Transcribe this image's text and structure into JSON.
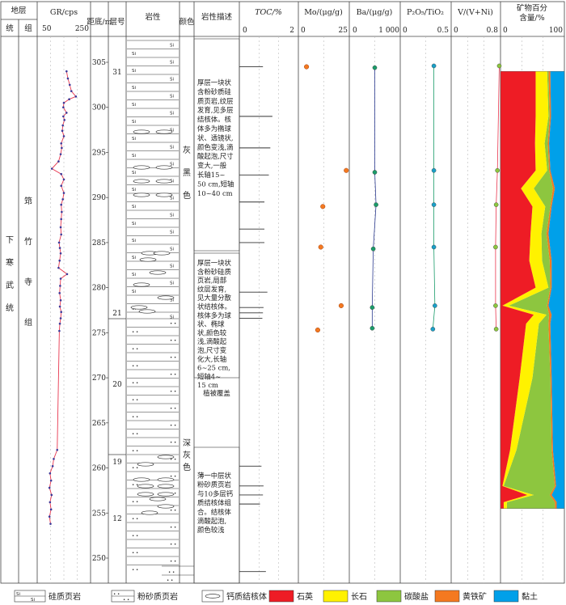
{
  "header": {
    "col_diceng": "地层",
    "col_tong": "统",
    "col_zu": "组",
    "col_gr": "GR/cps",
    "gr_min_label": "50",
    "gr_max_label": "250",
    "col_depth": "距底/m",
    "col_layer": "层号",
    "col_lith": "岩性",
    "col_color": "颜色",
    "col_desc": "岩性描述",
    "col_toc": "TOC/%",
    "toc_min_label": "0",
    "toc_max_label": "2",
    "col_mo": "Mo/(μg/g)",
    "mo_min_label": "0",
    "mo_max_label": "25",
    "col_ba": "Ba/(μg/g)",
    "ba_min_label": "0",
    "ba_max_label": "1 000",
    "col_pti": "P₂O₅/TiO₂",
    "pti_min_label": "0",
    "pti_max_label": "0.5",
    "col_v": "V/(V+Ni)",
    "v_min_label": "0",
    "v_max_label": "0.8",
    "col_mineral_1": "矿物百分",
    "col_mineral_2": "含量/%",
    "min_min_label": "0",
    "min_max_label": "100"
  },
  "strat": {
    "series_name": "下寒武统",
    "formation_name": "筇竹寺组"
  },
  "depth_ticks": [
    "305",
    "300",
    "295",
    "290",
    "285",
    "280",
    "275",
    "270",
    "265",
    "260",
    "255",
    "250"
  ],
  "layer_numbers": [
    "31",
    "21",
    "20",
    "19",
    "12"
  ],
  "colors_text": {
    "upper": "灰黑色",
    "lower": "深灰色"
  },
  "descriptions": {
    "d1": [
      "厚层一块状",
      "含粉砂质硅",
      "质页岩,纹层",
      "发育,见多层",
      "结核体。核",
      "体多为椭球",
      "状、透镜状,",
      "颜色变浅,滴",
      "酸起泡,尺寸",
      "变大,一般",
      "长轴15~",
      "50 cm,短轴",
      "10~40 cm"
    ],
    "d2": [
      "厚层一块状",
      "含粉砂硅质",
      "页岩,局部",
      "纹层发育,",
      "见大量分散",
      "状结核体。",
      "核体多为球",
      "状、椭球",
      "状,颜色较",
      "浅,滴酸起",
      "泡,尺寸变",
      "化大,长轴",
      "6~25 cm,",
      "短轴4~",
      "15 cm"
    ],
    "d3": "植被覆盖",
    "d4": [
      "薄一中层状",
      "粉砂质页岩",
      "与10多层钙",
      "质结核体组",
      "合。结核体",
      "滴酸起泡,",
      "颜色较浅"
    ]
  },
  "lith_symbols": {
    "si": "Si",
    "dots": "• •"
  },
  "legend": [
    {
      "label": "硅质页岩",
      "kind": "si-pattern"
    },
    {
      "label": "粉砂质页岩",
      "kind": "silt-pattern"
    },
    {
      "label": "钙质结核体",
      "kind": "nodule"
    },
    {
      "label": "石英",
      "kind": "swatch",
      "color": "#ee1c25"
    },
    {
      "label": "长石",
      "kind": "swatch",
      "color": "#fff200"
    },
    {
      "label": "碳酸盐",
      "kind": "swatch",
      "color": "#8dc63f"
    },
    {
      "label": "黄铁矿",
      "kind": "swatch",
      "color": "#f47920"
    },
    {
      "label": "黏土",
      "kind": "swatch",
      "color": "#00a0e9"
    }
  ],
  "chart_data": {
    "type": "line",
    "y_axis": "距底/m",
    "depth_range": [
      247,
      309
    ],
    "gr": {
      "xlim": [
        50,
        250
      ],
      "color": "#e8374f",
      "points": [
        [
          304.0,
          160
        ],
        [
          303.2,
          165
        ],
        [
          302.5,
          172
        ],
        [
          301.8,
          178
        ],
        [
          301.2,
          195
        ],
        [
          300.9,
          170
        ],
        [
          300.5,
          150
        ],
        [
          300.0,
          148
        ],
        [
          299.4,
          160
        ],
        [
          299.0,
          148
        ],
        [
          298.6,
          152
        ],
        [
          298.0,
          146
        ],
        [
          297.4,
          144
        ],
        [
          296.8,
          150
        ],
        [
          296.0,
          140
        ],
        [
          295.5,
          142
        ],
        [
          294.8,
          138
        ],
        [
          294.0,
          130
        ],
        [
          293.2,
          105
        ],
        [
          292.6,
          140
        ],
        [
          292.0,
          150
        ],
        [
          291.3,
          140
        ],
        [
          290.5,
          150
        ],
        [
          289.8,
          146
        ],
        [
          289.2,
          140
        ],
        [
          288.4,
          142
        ],
        [
          287.6,
          140
        ],
        [
          286.7,
          138
        ],
        [
          285.9,
          140
        ],
        [
          285.0,
          132
        ],
        [
          284.4,
          135
        ],
        [
          283.8,
          138
        ],
        [
          283.0,
          134
        ],
        [
          282.2,
          130
        ],
        [
          281.5,
          162
        ],
        [
          281.0,
          138
        ],
        [
          280.2,
          136
        ],
        [
          279.4,
          134
        ],
        [
          278.6,
          138
        ],
        [
          277.9,
          135
        ],
        [
          277.3,
          140
        ],
        [
          276.6,
          138
        ],
        [
          276.0,
          135
        ],
        [
          275.2,
          133
        ],
        [
          262.0,
          125
        ],
        [
          261.0,
          112
        ],
        [
          260.2,
          108
        ],
        [
          259.4,
          98
        ],
        [
          258.6,
          102
        ],
        [
          257.8,
          96
        ],
        [
          257.0,
          104
        ],
        [
          256.2,
          98
        ],
        [
          255.4,
          102
        ],
        [
          254.6,
          96
        ],
        [
          253.8,
          100
        ]
      ]
    },
    "toc": {
      "xlim": [
        0,
        2
      ],
      "points": [
        [
          304.5,
          0.8
        ],
        [
          299.0,
          1.12
        ],
        [
          295.5,
          1.05
        ],
        [
          292.5,
          1.0
        ],
        [
          289.5,
          0.85
        ],
        [
          286.5,
          0.85
        ],
        [
          285.0,
          0.85
        ],
        [
          279.5,
          0.95
        ],
        [
          277.8,
          0.82
        ],
        [
          277.2,
          0.8
        ],
        [
          276.6,
          0.78
        ],
        [
          260.2,
          0.75
        ],
        [
          258.0,
          0.82
        ],
        [
          257.0,
          0.8
        ],
        [
          256.0,
          0.7
        ],
        [
          248.5,
          0.9
        ]
      ]
    },
    "mo": {
      "xlim": [
        0,
        25
      ],
      "color": "#f47920",
      "points": [
        [
          304.5,
          4
        ],
        [
          293.0,
          23.5
        ],
        [
          289.0,
          12
        ],
        [
          284.5,
          11
        ],
        [
          278.0,
          21
        ],
        [
          275.3,
          9.5
        ]
      ]
    },
    "ba": {
      "xlim": [
        0,
        1000
      ],
      "color": "#2b3a8f",
      "points": [
        [
          304.4,
          500
        ],
        [
          292.8,
          500
        ],
        [
          289.2,
          525
        ],
        [
          284.3,
          470
        ],
        [
          277.8,
          450
        ],
        [
          275.5,
          450
        ]
      ]
    },
    "p2o5_tio2": {
      "xlim": [
        0,
        0.5
      ],
      "color": "#1a9c6a",
      "points": [
        [
          304.6,
          0.33
        ],
        [
          293.0,
          0.33
        ],
        [
          289.2,
          0.33
        ],
        [
          284.5,
          0.33
        ],
        [
          278.0,
          0.34
        ],
        [
          275.4,
          0.32
        ]
      ]
    },
    "v_vni": {
      "xlim": [
        0,
        0.8
      ],
      "color": "#e8374f",
      "points": [
        [
          304.6,
          0.78
        ],
        [
          293.0,
          0.75
        ],
        [
          289.2,
          0.73
        ],
        [
          284.5,
          0.72
        ],
        [
          278.0,
          0.72
        ],
        [
          275.4,
          0.73
        ]
      ]
    },
    "mineral": {
      "depth_range": [
        255.5,
        304.0
      ],
      "categories": [
        "石英",
        "长石",
        "碳酸盐",
        "黄铁矿",
        "黏土"
      ],
      "colors": [
        "#ee1c25",
        "#fff200",
        "#8dc63f",
        "#f47920",
        "#00a0e9"
      ],
      "profile": [
        {
          "d": 304.0,
          "c": [
            55,
            18,
            2,
            3,
            22
          ]
        },
        {
          "d": 299.0,
          "c": [
            55,
            20,
            2,
            2,
            21
          ]
        },
        {
          "d": 296.0,
          "c": [
            54,
            15,
            5,
            2,
            24
          ]
        },
        {
          "d": 293.0,
          "c": [
            55,
            18,
            3,
            2,
            22
          ]
        },
        {
          "d": 291.0,
          "c": [
            32,
            20,
            30,
            3,
            15
          ]
        },
        {
          "d": 289.0,
          "c": [
            50,
            20,
            8,
            2,
            20
          ]
        },
        {
          "d": 286.0,
          "c": [
            47,
            17,
            8,
            3,
            25
          ]
        },
        {
          "d": 283.0,
          "c": [
            45,
            20,
            12,
            3,
            20
          ]
        },
        {
          "d": 280.0,
          "c": [
            55,
            20,
            3,
            2,
            20
          ]
        },
        {
          "d": 278.0,
          "c": [
            3,
            10,
            60,
            2,
            25
          ]
        },
        {
          "d": 277.0,
          "c": [
            52,
            20,
            4,
            4,
            20
          ]
        },
        {
          "d": 276.0,
          "c": [
            40,
            20,
            15,
            3,
            22
          ]
        },
        {
          "d": 270.0,
          "c": [
            30,
            20,
            28,
            2,
            20
          ]
        },
        {
          "d": 262.0,
          "c": [
            15,
            10,
            55,
            2,
            18
          ]
        },
        {
          "d": 258.0,
          "c": [
            3,
            2,
            80,
            2,
            13
          ]
        },
        {
          "d": 257.0,
          "c": [
            42,
            10,
            25,
            3,
            20
          ]
        },
        {
          "d": 256.2,
          "c": [
            5,
            5,
            75,
            3,
            12
          ]
        },
        {
          "d": 255.5,
          "c": [
            5,
            5,
            75,
            3,
            12
          ]
        }
      ]
    }
  }
}
